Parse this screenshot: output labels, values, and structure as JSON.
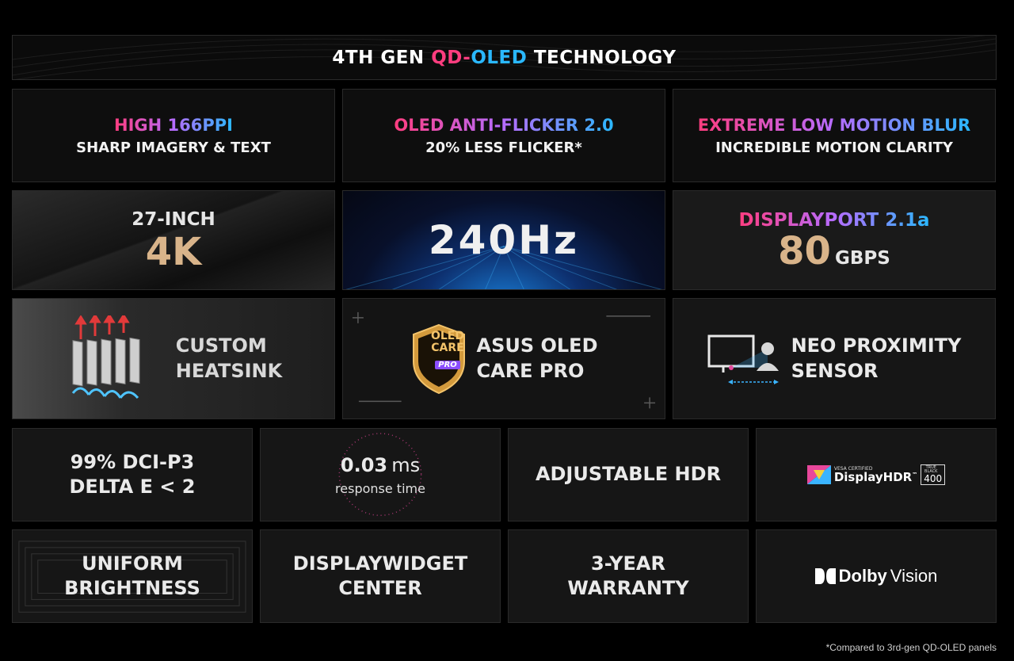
{
  "banner": {
    "prefix": "4TH GEN ",
    "qd": "QD-",
    "oled": "OLED",
    "suffix": " TECHNOLOGY"
  },
  "row1": [
    {
      "title": "HIGH 166PPI",
      "subtitle": "SHARP IMAGERY & TEXT"
    },
    {
      "title": "OLED ANTI-FLICKER 2.0",
      "subtitle": "20% LESS FLICKER*"
    },
    {
      "title": "EXTREME LOW MOTION BLUR",
      "subtitle": "INCREDIBLE MOTION CLARITY"
    }
  ],
  "row2": {
    "size": {
      "label": "27-INCH",
      "value": "4K"
    },
    "refresh": {
      "value": "240Hz"
    },
    "port": {
      "label": "DISPLAYPORT 2.1a",
      "value": "80",
      "unit": "GBPS"
    }
  },
  "row3": {
    "heatsink": {
      "line1": "CUSTOM",
      "line2": "HEATSINK"
    },
    "care": {
      "badge_line1": "OLED",
      "badge_line2": "CARE",
      "badge_line3": "PRO",
      "line1": "ASUS OLED",
      "line2": "CARE PRO"
    },
    "sensor": {
      "line1": "NEO PROXIMITY",
      "line2": "SENSOR"
    }
  },
  "row4": {
    "gamut": {
      "line1": "99% DCI-P3",
      "line2": "DELTA E < 2"
    },
    "response": {
      "value": "0.03",
      "unit": "ms",
      "label": "response time"
    },
    "hdr": {
      "label": "ADJUSTABLE HDR"
    },
    "vesa": {
      "certified": "VESA CERTIFIED",
      "name": "DisplayHDR",
      "tm": "™",
      "badge_top": "TRUE BLACK",
      "badge_num": "400"
    }
  },
  "row5": {
    "uniform": {
      "label": "UNIFORM BRIGHTNESS"
    },
    "widget": {
      "line1": "DISPLAYWIDGET",
      "line2": "CENTER"
    },
    "warranty": {
      "line1": "3-YEAR",
      "line2": "WARRANTY"
    },
    "dolby": {
      "brand": "Dolby",
      "product": "Vision"
    }
  },
  "footnote": "*Compared to 3rd-gen QD-OLED panels",
  "colors": {
    "pink": "#ff3d7f",
    "purple": "#b66cff",
    "blue": "#2ab8ff",
    "gold": "#d9b48a",
    "background": "#000000"
  },
  "icons": [
    "heatsink-icon",
    "oled-care-shield-icon",
    "proximity-sensor-icon",
    "vesa-color-square-icon",
    "dolby-logo-icon"
  ]
}
